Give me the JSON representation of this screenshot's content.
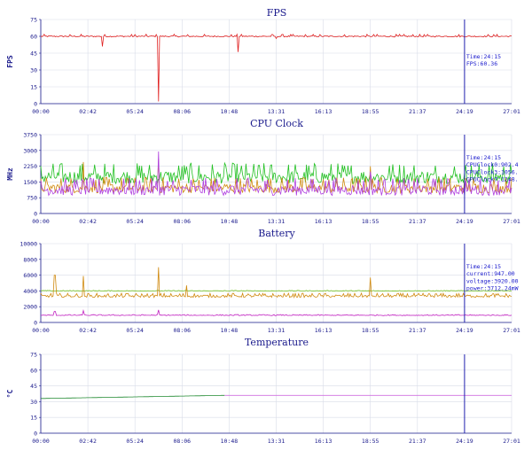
{
  "x_ticks": [
    "00:00",
    "02:42",
    "05:24",
    "08:06",
    "10:48",
    "13:31",
    "16:13",
    "18:55",
    "21:37",
    "24:19",
    "27:01"
  ],
  "cursor_time_index": 9.0,
  "chart_data": [
    {
      "type": "line",
      "title": "FPS",
      "ylabel": "FPS",
      "ylim": [
        0,
        75
      ],
      "yticks": [
        0,
        15,
        30,
        45,
        60,
        75
      ],
      "grid": true,
      "series": [
        {
          "color": "#e02020",
          "base": 60.0,
          "noise": 1.2,
          "spikes": [
            [
              0.13,
              51
            ],
            [
              0.25,
              2
            ],
            [
              0.42,
              46
            ],
            [
              0.5,
              58
            ]
          ]
        }
      ],
      "cursor_labels": [
        "Time:24:15",
        "FPS:60.36"
      ]
    },
    {
      "type": "line",
      "title": "CPU Clock",
      "ylabel": "MHz",
      "ylim": [
        0,
        3750
      ],
      "yticks": [
        0,
        750,
        1500,
        2250,
        3000,
        3750
      ],
      "grid": true,
      "series": [
        {
          "color": "#22c022",
          "base": 1650,
          "noise": 650,
          "spikes": []
        },
        {
          "color": "#d08a10",
          "base": 1150,
          "noise": 500,
          "spikes": [
            [
              0.09,
              2450
            ],
            [
              0.25,
              2600
            ],
            [
              0.7,
              2250
            ]
          ]
        },
        {
          "color": "#b040e0",
          "base": 1050,
          "noise": 550,
          "spikes": [
            [
              0.25,
              2950
            ],
            [
              0.7,
              2000
            ]
          ]
        }
      ],
      "cursor_labels": [
        "Time:24:15",
        "CPUClock0:902.4",
        "CPUClock3:1056.",
        "CPUClock7:1248."
      ]
    },
    {
      "type": "line",
      "title": "Battery",
      "ylabel": "",
      "ylim": [
        0,
        10000
      ],
      "yticks": [
        0,
        2000,
        4000,
        6000,
        8000,
        10000
      ],
      "grid": true,
      "series": [
        {
          "color": "#70c020",
          "base": 4000,
          "noise": 60,
          "spikes": []
        },
        {
          "color": "#d08a10",
          "base": 3300,
          "noise": 350,
          "spikes": [
            [
              0.03,
              6000
            ],
            [
              0.09,
              5900
            ],
            [
              0.25,
              7000
            ],
            [
              0.31,
              4700
            ],
            [
              0.7,
              5700
            ]
          ]
        },
        {
          "color": "#c020c0",
          "base": 900,
          "noise": 90,
          "spikes": [
            [
              0.03,
              1400
            ],
            [
              0.09,
              1500
            ],
            [
              0.25,
              1600
            ]
          ]
        }
      ],
      "cursor_labels": [
        "Time:24:15",
        "current:947.00",
        "voltage:3920.00",
        "power:3712.24mW"
      ]
    },
    {
      "type": "line",
      "title": "Temperature",
      "ylabel": "°C",
      "ylim": [
        0,
        75
      ],
      "yticks": [
        0,
        15,
        30,
        45,
        60,
        75
      ],
      "grid": true,
      "series": [
        {
          "color": "#208a30",
          "base": 33,
          "noise": 0,
          "spikes": [],
          "trend": [
            33,
            36
          ],
          "until": 0.39
        },
        {
          "color": "#d070e0",
          "base": 36,
          "noise": 0,
          "spikes": [],
          "from": 0.39
        }
      ],
      "cursor_labels": []
    }
  ]
}
